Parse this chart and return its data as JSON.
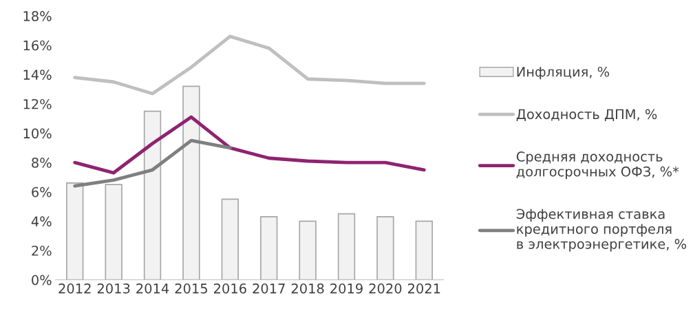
{
  "chart_data": {
    "type": "bar",
    "categories": [
      "2012",
      "2013",
      "2014",
      "2015",
      "2016",
      "2017",
      "2018",
      "2019",
      "2020",
      "2021"
    ],
    "ylim": [
      0,
      18
    ],
    "yticks": [
      {
        "value": 0,
        "label": "0%"
      },
      {
        "value": 2,
        "label": "2%"
      },
      {
        "value": 4,
        "label": "4%"
      },
      {
        "value": 6,
        "label": "6%"
      },
      {
        "value": 8,
        "label": "8%"
      },
      {
        "value": 10,
        "label": "10%"
      },
      {
        "value": 12,
        "label": "12%"
      },
      {
        "value": 14,
        "label": "14%"
      },
      {
        "value": 16,
        "label": "16%"
      },
      {
        "value": 18,
        "label": "18%"
      }
    ],
    "grid": false,
    "legend": "right",
    "series": [
      {
        "name": "Инфляция, %",
        "color": "#f2f2f2",
        "values": [
          6.6,
          6.5,
          11.5,
          13.2,
          5.5,
          4.3,
          4.0,
          4.5,
          4.3,
          4.0
        ]
      },
      {
        "name": "Доходность ДПМ, %",
        "type": "line",
        "color": "#bfbfbf",
        "values": [
          13.8,
          13.5,
          12.7,
          14.5,
          16.6,
          15.8,
          13.7,
          13.6,
          13.4,
          13.4
        ]
      },
      {
        "name": "Средняя доходность\nдолгосрочных ОФЗ, %*",
        "type": "line",
        "color": "#8e2470",
        "values": [
          8.0,
          7.3,
          9.3,
          11.1,
          9.0,
          8.3,
          8.1,
          8.0,
          8.0,
          7.5
        ]
      },
      {
        "name": "Эффективная ставка\nкредитного портфеля\nв электроэнергетике, %",
        "type": "line",
        "color": "#7f7f7f",
        "values": [
          6.4,
          6.8,
          7.5,
          9.5,
          9.0,
          null,
          null,
          null,
          null,
          null
        ]
      }
    ]
  }
}
